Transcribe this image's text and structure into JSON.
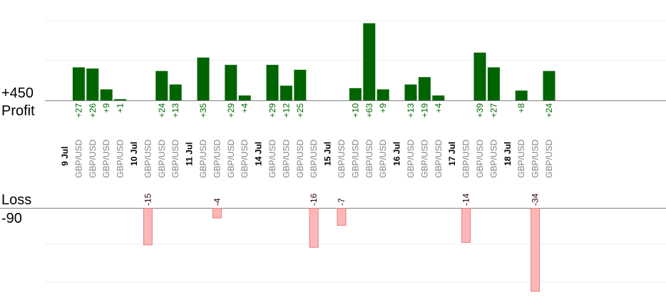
{
  "chart_data": {
    "type": "bar",
    "profit_label": "Profit",
    "profit_max_label": "+450",
    "loss_label": "Loss",
    "loss_max_label": "-90",
    "profit_ylim": [
      0,
      450
    ],
    "loss_ylim": [
      -90,
      0
    ],
    "colors": {
      "profit": "#006400",
      "profit_text": "#006400",
      "loss_fill": "#ffb6b6",
      "loss_stroke": "#e08080",
      "loss_text": "#330000",
      "pair_text": "#808080",
      "date_text": "#000000"
    },
    "days": [
      {
        "date": "9 Jul",
        "trades": [
          {
            "pair": "GBP/USD",
            "value": 27,
            "label": "+27"
          },
          {
            "pair": "GBP/USD",
            "value": 26,
            "label": "+26"
          },
          {
            "pair": "GBP/USD",
            "value": 9,
            "label": "+9"
          },
          {
            "pair": "GBP/USD",
            "value": 1,
            "label": "+1"
          }
        ]
      },
      {
        "date": "10 Jul",
        "trades": [
          {
            "pair": "GBP/USD",
            "value": -15,
            "label": "-15"
          },
          {
            "pair": "GBP/USD",
            "value": 24,
            "label": "+24"
          },
          {
            "pair": "GBP/USD",
            "value": 13,
            "label": "+13"
          }
        ]
      },
      {
        "date": "11 Jul",
        "trades": [
          {
            "pair": "GBP/USD",
            "value": 35,
            "label": "+35"
          },
          {
            "pair": "GBP/USD",
            "value": -4,
            "label": "-4"
          },
          {
            "pair": "GBP/USD",
            "value": 29,
            "label": "+29"
          },
          {
            "pair": "GBP/USD",
            "value": 4,
            "label": "+4"
          }
        ]
      },
      {
        "date": "14 Jul",
        "trades": [
          {
            "pair": "GBP/USD",
            "value": 29,
            "label": "+29"
          },
          {
            "pair": "GBP/USD",
            "value": 12,
            "label": "+12"
          },
          {
            "pair": "GBP/USD",
            "value": 25,
            "label": "+25"
          },
          {
            "pair": "GBP/USD",
            "value": -16,
            "label": "-16"
          }
        ]
      },
      {
        "date": "15 Jul",
        "trades": [
          {
            "pair": "GBP/USD",
            "value": -7,
            "label": "-7"
          },
          {
            "pair": "GBP/USD",
            "value": 10,
            "label": "+10"
          },
          {
            "pair": "GBP/USD",
            "value": 63,
            "label": "+63"
          },
          {
            "pair": "GBP/USD",
            "value": 9,
            "label": "+9"
          }
        ]
      },
      {
        "date": "16 Jul",
        "trades": [
          {
            "pair": "GBP/USD",
            "value": 13,
            "label": "+13"
          },
          {
            "pair": "GBP/USD",
            "value": 19,
            "label": "+19"
          },
          {
            "pair": "GBP/USD",
            "value": 4,
            "label": "+4"
          }
        ]
      },
      {
        "date": "17 Jul",
        "trades": [
          {
            "pair": "GBP/USD",
            "value": -14,
            "label": "-14"
          },
          {
            "pair": "GBP/USD",
            "value": 39,
            "label": "+39"
          },
          {
            "pair": "GBP/USD",
            "value": 27,
            "label": "+27"
          }
        ]
      },
      {
        "date": "18 Jul",
        "trades": [
          {
            "pair": "GBP/USD",
            "value": 8,
            "label": "+8"
          },
          {
            "pair": "GBP/USD",
            "value": -34,
            "label": "-34"
          },
          {
            "pair": "GBP/USD",
            "value": 24,
            "label": "+24"
          }
        ]
      }
    ]
  }
}
